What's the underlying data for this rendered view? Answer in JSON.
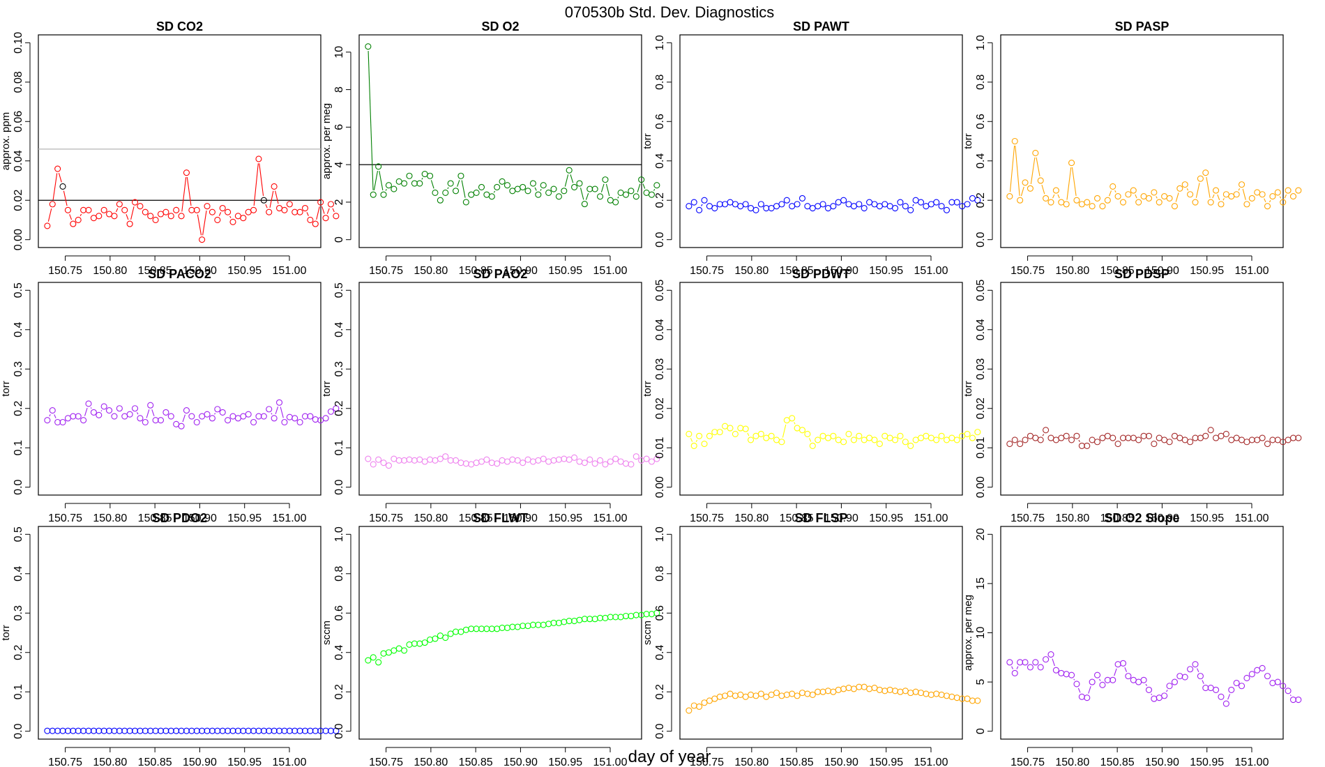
{
  "figure_title": "070530b   Std. Dev. Diagnostics",
  "x_axis_label": "day of year",
  "x_ticks": [
    "150.75",
    "150.80",
    "150.85",
    "150.90",
    "150.95",
    "151.00"
  ],
  "x_tick_values": [
    150.75,
    150.8,
    150.85,
    150.9,
    150.95,
    151.0
  ],
  "xlim": [
    150.72,
    151.035
  ],
  "chart_data": [
    {
      "type": "line",
      "title": "SD CO2",
      "ylabel": "approx. ppm",
      "color": "#ff0000",
      "ylim": [
        0,
        0.1
      ],
      "yticks": [
        "0.00",
        "0.02",
        "0.04",
        "0.06",
        "0.08",
        "0.10"
      ],
      "ytick_values": [
        0,
        0.02,
        0.04,
        0.06,
        0.08,
        0.1
      ],
      "hlines": [
        {
          "y": 0.046,
          "color": "#bbbbbb"
        },
        {
          "y": 0.02,
          "color": "#000000"
        }
      ],
      "x_start": 150.73,
      "x_step": 0.00575,
      "values": [
        0.007,
        0.018,
        0.036,
        0.027,
        0.015,
        0.008,
        0.01,
        0.015,
        0.015,
        0.011,
        0.012,
        0.015,
        0.013,
        0.012,
        0.018,
        0.015,
        0.008,
        0.019,
        0.017,
        0.014,
        0.012,
        0.01,
        0.013,
        0.014,
        0.012,
        0.015,
        0.012,
        0.034,
        0.015,
        0.015,
        0.0,
        0.017,
        0.014,
        0.01,
        0.016,
        0.014,
        0.009,
        0.012,
        0.011,
        0.014,
        0.015,
        0.041,
        0.02,
        0.014,
        0.027,
        0.016,
        0.015,
        0.018,
        0.014,
        0.014,
        0.016,
        0.01,
        0.008,
        0.019,
        0.011,
        0.018,
        0.012
      ],
      "highlight": [
        {
          "index": 3,
          "color": "#000000"
        },
        {
          "index": 42,
          "color": "#000000"
        }
      ]
    },
    {
      "type": "line",
      "title": "SD O2",
      "ylabel": "approx. per meg",
      "color": "#008000",
      "ylim": [
        0,
        10.5
      ],
      "yticks": [
        "0",
        "2",
        "4",
        "6",
        "8",
        "10"
      ],
      "ytick_values": [
        0,
        2,
        4,
        6,
        8,
        10
      ],
      "hlines": [
        {
          "y": 4.0,
          "color": "#000000"
        }
      ],
      "x_start": 150.73,
      "x_step": 0.00575,
      "values": [
        10.3,
        2.4,
        3.9,
        2.4,
        2.9,
        2.7,
        3.1,
        3.0,
        3.4,
        3.0,
        3.0,
        3.5,
        3.4,
        2.5,
        2.1,
        2.5,
        3.0,
        2.6,
        3.4,
        2.0,
        2.4,
        2.5,
        2.8,
        2.4,
        2.3,
        2.8,
        3.1,
        2.9,
        2.6,
        2.7,
        2.8,
        2.6,
        3.0,
        2.4,
        2.9,
        2.5,
        2.7,
        2.3,
        2.6,
        3.7,
        2.8,
        3.0,
        1.9,
        2.7,
        2.7,
        2.3,
        3.2,
        2.1,
        2.0,
        2.5,
        2.4,
        2.6,
        2.3,
        3.2,
        2.5,
        2.4,
        2.9
      ]
    },
    {
      "type": "line",
      "title": "SD PAWT",
      "ylabel": "torr",
      "color": "#0000ff",
      "ylim": [
        0,
        1.0
      ],
      "yticks": [
        "0.0",
        "0.2",
        "0.4",
        "0.6",
        "0.8",
        "1.0"
      ],
      "ytick_values": [
        0,
        0.2,
        0.4,
        0.6,
        0.8,
        1.0
      ],
      "hlines": [],
      "x_start": 150.73,
      "x_step": 0.00575,
      "values": [
        0.17,
        0.19,
        0.15,
        0.2,
        0.17,
        0.16,
        0.18,
        0.18,
        0.19,
        0.18,
        0.17,
        0.18,
        0.16,
        0.15,
        0.18,
        0.16,
        0.16,
        0.17,
        0.18,
        0.2,
        0.17,
        0.18,
        0.21,
        0.17,
        0.16,
        0.17,
        0.18,
        0.16,
        0.17,
        0.19,
        0.2,
        0.18,
        0.17,
        0.18,
        0.16,
        0.19,
        0.18,
        0.17,
        0.18,
        0.17,
        0.16,
        0.19,
        0.17,
        0.15,
        0.2,
        0.19,
        0.17,
        0.18,
        0.19,
        0.17,
        0.15,
        0.19,
        0.19,
        0.17,
        0.18,
        0.21,
        0.2
      ]
    },
    {
      "type": "line",
      "title": "SD PASP",
      "ylabel": "torr",
      "color": "#ffa500",
      "ylim": [
        0,
        1.0
      ],
      "yticks": [
        "0.0",
        "0.2",
        "0.4",
        "0.6",
        "0.8",
        "1.0"
      ],
      "ytick_values": [
        0,
        0.2,
        0.4,
        0.6,
        0.8,
        1.0
      ],
      "hlines": [],
      "x_start": 150.73,
      "x_step": 0.00575,
      "values": [
        0.22,
        0.5,
        0.2,
        0.29,
        0.26,
        0.44,
        0.3,
        0.21,
        0.19,
        0.25,
        0.19,
        0.18,
        0.39,
        0.2,
        0.18,
        0.19,
        0.17,
        0.21,
        0.17,
        0.2,
        0.27,
        0.22,
        0.19,
        0.23,
        0.25,
        0.19,
        0.22,
        0.21,
        0.24,
        0.19,
        0.22,
        0.21,
        0.17,
        0.26,
        0.28,
        0.23,
        0.19,
        0.31,
        0.34,
        0.19,
        0.25,
        0.18,
        0.23,
        0.22,
        0.23,
        0.28,
        0.18,
        0.21,
        0.24,
        0.23,
        0.17,
        0.22,
        0.24,
        0.19,
        0.25,
        0.22,
        0.25
      ]
    },
    {
      "type": "line",
      "title": "SD PACO2",
      "ylabel": "torr",
      "color": "#a020f0",
      "ylim": [
        0,
        0.5
      ],
      "yticks": [
        "0.0",
        "0.1",
        "0.2",
        "0.3",
        "0.4",
        "0.5"
      ],
      "ytick_values": [
        0,
        0.1,
        0.2,
        0.3,
        0.4,
        0.5
      ],
      "hlines": [],
      "x_start": 150.73,
      "x_step": 0.00575,
      "values": [
        0.17,
        0.195,
        0.165,
        0.165,
        0.175,
        0.18,
        0.18,
        0.17,
        0.212,
        0.19,
        0.183,
        0.205,
        0.195,
        0.18,
        0.2,
        0.18,
        0.185,
        0.2,
        0.175,
        0.165,
        0.208,
        0.17,
        0.17,
        0.19,
        0.18,
        0.16,
        0.155,
        0.195,
        0.18,
        0.165,
        0.18,
        0.185,
        0.175,
        0.198,
        0.19,
        0.17,
        0.18,
        0.175,
        0.18,
        0.185,
        0.165,
        0.18,
        0.18,
        0.198,
        0.175,
        0.215,
        0.165,
        0.178,
        0.175,
        0.165,
        0.18,
        0.18,
        0.172,
        0.17,
        0.175,
        0.192,
        0.2
      ]
    },
    {
      "type": "line",
      "title": "SD PAO2",
      "ylabel": "torr",
      "color": "#ee82ee",
      "ylim": [
        0,
        0.5
      ],
      "yticks": [
        "0.0",
        "0.1",
        "0.2",
        "0.3",
        "0.4",
        "0.5"
      ],
      "ytick_values": [
        0,
        0.1,
        0.2,
        0.3,
        0.4,
        0.5
      ],
      "hlines": [],
      "x_start": 150.73,
      "x_step": 0.00575,
      "values": [
        0.072,
        0.058,
        0.07,
        0.062,
        0.055,
        0.072,
        0.068,
        0.068,
        0.07,
        0.068,
        0.07,
        0.065,
        0.07,
        0.068,
        0.072,
        0.078,
        0.068,
        0.068,
        0.062,
        0.06,
        0.058,
        0.062,
        0.065,
        0.07,
        0.062,
        0.06,
        0.068,
        0.065,
        0.07,
        0.068,
        0.062,
        0.07,
        0.065,
        0.068,
        0.072,
        0.065,
        0.068,
        0.07,
        0.072,
        0.07,
        0.075,
        0.065,
        0.062,
        0.07,
        0.06,
        0.068,
        0.058,
        0.065,
        0.072,
        0.065,
        0.06,
        0.058,
        0.078,
        0.068,
        0.072,
        0.065,
        0.072
      ]
    },
    {
      "type": "line",
      "title": "SD PDWT",
      "ylabel": "torr",
      "color": "#ffff00",
      "ylim": [
        0,
        0.05
      ],
      "yticks": [
        "0.00",
        "0.01",
        "0.02",
        "0.03",
        "0.04",
        "0.05"
      ],
      "ytick_values": [
        0,
        0.01,
        0.02,
        0.03,
        0.04,
        0.05
      ],
      "hlines": [],
      "x_start": 150.73,
      "x_step": 0.00575,
      "values": [
        0.0135,
        0.0105,
        0.013,
        0.011,
        0.013,
        0.014,
        0.014,
        0.0155,
        0.015,
        0.0135,
        0.015,
        0.0148,
        0.012,
        0.013,
        0.0135,
        0.0125,
        0.013,
        0.012,
        0.0115,
        0.017,
        0.0175,
        0.015,
        0.0145,
        0.0135,
        0.0105,
        0.012,
        0.013,
        0.0125,
        0.013,
        0.012,
        0.0115,
        0.0135,
        0.012,
        0.013,
        0.012,
        0.0125,
        0.012,
        0.011,
        0.013,
        0.0125,
        0.012,
        0.013,
        0.0115,
        0.0105,
        0.012,
        0.0125,
        0.013,
        0.0125,
        0.012,
        0.013,
        0.012,
        0.0125,
        0.012,
        0.013,
        0.0135,
        0.0125,
        0.014
      ]
    },
    {
      "type": "line",
      "title": "SD PDSP",
      "ylabel": "torr",
      "color": "#a52a2a",
      "ylim": [
        0,
        0.05
      ],
      "yticks": [
        "0.00",
        "0.01",
        "0.02",
        "0.03",
        "0.04",
        "0.05"
      ],
      "ytick_values": [
        0,
        0.01,
        0.02,
        0.03,
        0.04,
        0.05
      ],
      "hlines": [],
      "x_start": 150.73,
      "x_step": 0.00575,
      "values": [
        0.011,
        0.012,
        0.011,
        0.012,
        0.013,
        0.0125,
        0.012,
        0.0145,
        0.0125,
        0.012,
        0.0125,
        0.013,
        0.012,
        0.013,
        0.0105,
        0.0105,
        0.012,
        0.0115,
        0.0125,
        0.013,
        0.0125,
        0.011,
        0.0125,
        0.0125,
        0.0125,
        0.012,
        0.013,
        0.013,
        0.011,
        0.0125,
        0.012,
        0.0115,
        0.013,
        0.0125,
        0.012,
        0.0115,
        0.0125,
        0.0125,
        0.013,
        0.0145,
        0.0125,
        0.013,
        0.0135,
        0.012,
        0.0125,
        0.012,
        0.0115,
        0.012,
        0.012,
        0.0125,
        0.011,
        0.012,
        0.012,
        0.0115,
        0.012,
        0.0125,
        0.0125
      ]
    },
    {
      "type": "line",
      "title": "SD PDO2",
      "ylabel": "torr",
      "color": "#0000ff",
      "ylim": [
        0,
        0.5
      ],
      "yticks": [
        "0.0",
        "0.1",
        "0.2",
        "0.3",
        "0.4",
        "0.5"
      ],
      "ytick_values": [
        0,
        0.1,
        0.2,
        0.3,
        0.4,
        0.5
      ],
      "hlines": [],
      "x_start": 150.73,
      "x_step": 0.00575,
      "values": [
        0.001,
        0.001,
        0.001,
        0.001,
        0.001,
        0.001,
        0.001,
        0.001,
        0.001,
        0.001,
        0.001,
        0.001,
        0.001,
        0.001,
        0.001,
        0.001,
        0.001,
        0.001,
        0.001,
        0.001,
        0.001,
        0.001,
        0.001,
        0.001,
        0.001,
        0.001,
        0.001,
        0.001,
        0.001,
        0.001,
        0.001,
        0.001,
        0.001,
        0.001,
        0.001,
        0.001,
        0.001,
        0.001,
        0.001,
        0.001,
        0.001,
        0.001,
        0.001,
        0.001,
        0.001,
        0.001,
        0.001,
        0.001,
        0.001,
        0.001,
        0.001,
        0.001,
        0.001,
        0.001,
        0.001,
        0.001,
        0.001
      ]
    },
    {
      "type": "line",
      "title": "SD FLWT",
      "ylabel": "sccm",
      "color": "#00ff00",
      "ylim": [
        0,
        1.0
      ],
      "yticks": [
        "0.0",
        "0.2",
        "0.4",
        "0.6",
        "0.8",
        "1.0"
      ],
      "ytick_values": [
        0,
        0.2,
        0.4,
        0.6,
        0.8,
        1.0
      ],
      "hlines": [],
      "x_start": 150.73,
      "x_step": 0.00575,
      "values": [
        0.36,
        0.375,
        0.35,
        0.395,
        0.4,
        0.41,
        0.42,
        0.41,
        0.44,
        0.445,
        0.445,
        0.45,
        0.465,
        0.47,
        0.485,
        0.475,
        0.495,
        0.505,
        0.505,
        0.515,
        0.52,
        0.52,
        0.52,
        0.52,
        0.52,
        0.52,
        0.525,
        0.525,
        0.53,
        0.53,
        0.535,
        0.535,
        0.54,
        0.54,
        0.54,
        0.545,
        0.55,
        0.55,
        0.555,
        0.56,
        0.56,
        0.565,
        0.57,
        0.57,
        0.57,
        0.575,
        0.575,
        0.58,
        0.58,
        0.58,
        0.585,
        0.585,
        0.59,
        0.59,
        0.595,
        0.595,
        0.6
      ]
    },
    {
      "type": "line",
      "title": "SD FLSP",
      "ylabel": "sccm",
      "color": "#ffa500",
      "ylim": [
        0,
        1.0
      ],
      "yticks": [
        "0.0",
        "0.2",
        "0.4",
        "0.6",
        "0.8",
        "1.0"
      ],
      "ytick_values": [
        0,
        0.2,
        0.4,
        0.6,
        0.8,
        1.0
      ],
      "hlines": [],
      "x_start": 150.73,
      "x_step": 0.00575,
      "values": [
        0.105,
        0.13,
        0.125,
        0.145,
        0.155,
        0.165,
        0.175,
        0.18,
        0.19,
        0.18,
        0.185,
        0.175,
        0.185,
        0.18,
        0.19,
        0.175,
        0.185,
        0.195,
        0.18,
        0.185,
        0.19,
        0.18,
        0.195,
        0.19,
        0.185,
        0.2,
        0.2,
        0.205,
        0.2,
        0.21,
        0.215,
        0.22,
        0.215,
        0.225,
        0.225,
        0.215,
        0.22,
        0.21,
        0.205,
        0.21,
        0.205,
        0.2,
        0.205,
        0.195,
        0.2,
        0.195,
        0.19,
        0.185,
        0.19,
        0.185,
        0.18,
        0.175,
        0.17,
        0.165,
        0.165,
        0.155,
        0.155
      ]
    },
    {
      "type": "line",
      "title": "SD O2 Slope",
      "ylabel": "approx. per meg",
      "color": "#a020f0",
      "ylim": [
        0,
        20
      ],
      "yticks": [
        "0",
        "5",
        "10",
        "15",
        "20"
      ],
      "ytick_values": [
        0,
        5,
        10,
        15,
        20
      ],
      "hlines": [],
      "x_start": 150.73,
      "x_step": 0.00575,
      "values": [
        7.0,
        5.9,
        7.0,
        7.0,
        6.5,
        7.0,
        6.5,
        7.3,
        7.8,
        6.2,
        5.9,
        5.8,
        5.7,
        4.8,
        3.5,
        3.4,
        5.0,
        5.7,
        4.7,
        5.2,
        5.2,
        6.8,
        6.9,
        5.6,
        5.2,
        5.0,
        5.2,
        4.2,
        3.3,
        3.4,
        3.6,
        4.6,
        5.0,
        5.6,
        5.5,
        6.3,
        6.8,
        5.6,
        4.4,
        4.4,
        4.2,
        3.5,
        2.8,
        4.2,
        4.9,
        4.6,
        5.4,
        5.8,
        6.2,
        6.4,
        5.6,
        4.9,
        5.0,
        4.6,
        4.1,
        3.2,
        3.2
      ]
    }
  ]
}
